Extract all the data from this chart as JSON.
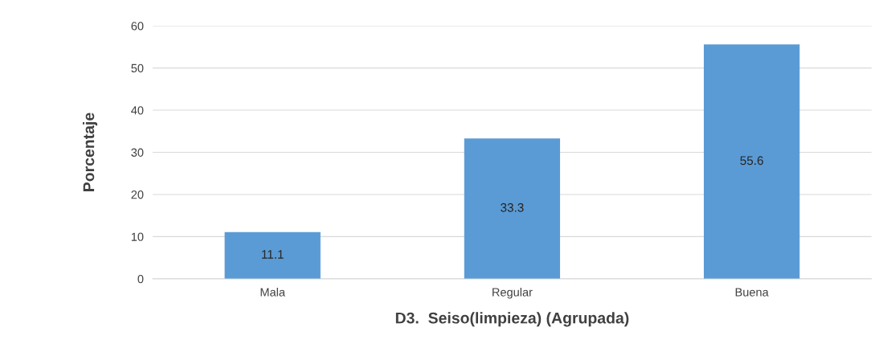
{
  "chart_data": {
    "type": "bar",
    "xlabel": "D3.  Seiso(limpieza) (Agrupada)",
    "ylabel": "Porcentaje",
    "categories": [
      "Mala",
      "Regular",
      "Buena"
    ],
    "values": [
      11.1,
      33.3,
      55.6
    ],
    "color": "#5b9bd5",
    "ylim": [
      0,
      60
    ],
    "yticks": [
      0,
      10,
      20,
      30,
      40,
      50,
      60
    ],
    "grid": "y",
    "data_labels": true
  }
}
